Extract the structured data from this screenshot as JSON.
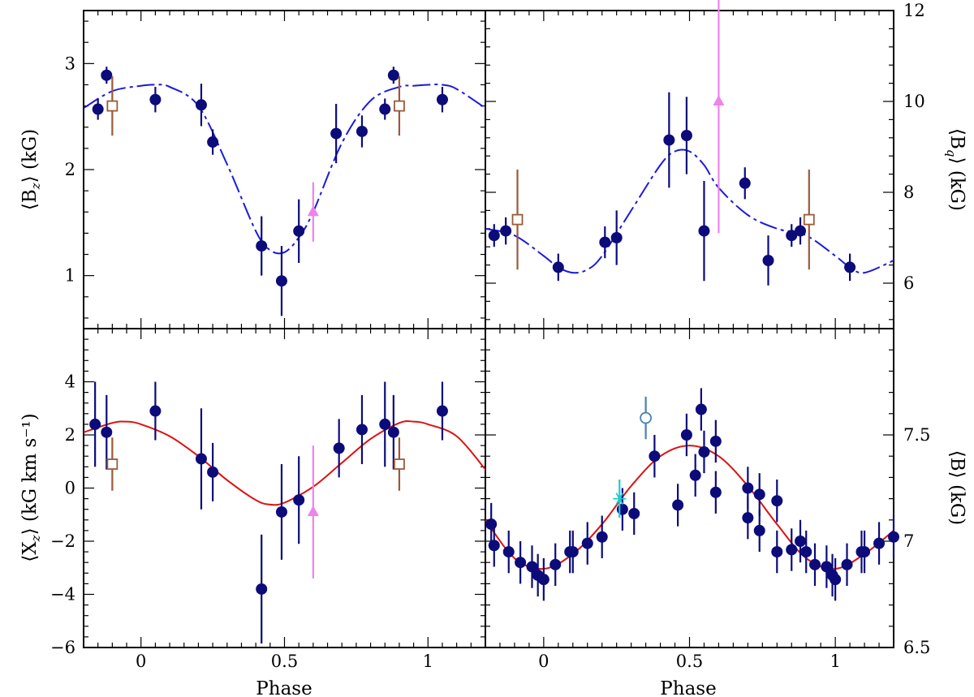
{
  "colors": {
    "main_points": "#0b0b7a",
    "square": "#9a5a3a",
    "triangle": "#ee82ee",
    "circle_open": "#4682b4",
    "star": "#20c8d0",
    "fit_dashed": "#1a1add",
    "fit_solid": "#dd1111"
  },
  "chart_data": [
    {
      "id": "top-left",
      "type": "scatter",
      "xlabel": "",
      "ylabel": "⟨Bz⟩ (kG)",
      "ylabel_main": "⟨B",
      "ylabel_sub": "z",
      "ylabel_tail": "⟩ (kG)",
      "xlim": [
        -0.2,
        1.2
      ],
      "ylim": [
        0.5,
        3.5
      ],
      "yticks": [
        1,
        2,
        3
      ],
      "yticklabels": [
        "1",
        "2",
        "3"
      ],
      "xticklabels_shown": false,
      "fit": {
        "style": "dashed",
        "x": [
          -0.2,
          -0.1,
          0,
          0.05,
          0.1,
          0.2,
          0.3,
          0.4,
          0.45,
          0.5,
          0.55,
          0.6,
          0.7,
          0.8,
          0.9,
          0.95,
          1,
          1.05,
          1.1,
          1.2
        ],
        "y": [
          2.58,
          2.74,
          2.79,
          2.8,
          2.78,
          2.6,
          2.05,
          1.42,
          1.24,
          1.22,
          1.36,
          1.6,
          2.25,
          2.65,
          2.78,
          2.79,
          2.8,
          2.8,
          2.76,
          2.58
        ]
      },
      "series": [
        {
          "name": "main",
          "marker": "filled-circle",
          "points": [
            {
              "x": -0.15,
              "y": 2.57,
              "err": 0.1
            },
            {
              "x": -0.12,
              "y": 2.89,
              "err": 0.08
            },
            {
              "x": 0.05,
              "y": 2.66,
              "err": 0.12
            },
            {
              "x": 0.21,
              "y": 2.61,
              "err": 0.2
            },
            {
              "x": 0.25,
              "y": 2.26,
              "err": 0.12
            },
            {
              "x": 0.42,
              "y": 1.28,
              "err": 0.28
            },
            {
              "x": 0.49,
              "y": 0.95,
              "err": 0.33
            },
            {
              "x": 0.55,
              "y": 1.42,
              "err": 0.3
            },
            {
              "x": 0.68,
              "y": 2.34,
              "err": 0.28
            },
            {
              "x": 0.77,
              "y": 2.36,
              "err": 0.15
            },
            {
              "x": 0.85,
              "y": 2.57,
              "err": 0.1
            },
            {
              "x": 0.88,
              "y": 2.89,
              "err": 0.08
            },
            {
              "x": 1.05,
              "y": 2.66,
              "err": 0.12
            }
          ]
        },
        {
          "name": "square",
          "marker": "open-square",
          "points": [
            {
              "x": -0.1,
              "y": 2.6,
              "err": 0.28
            },
            {
              "x": 0.9,
              "y": 2.6,
              "err": 0.28
            }
          ]
        },
        {
          "name": "triangle",
          "marker": "filled-triangle",
          "points": [
            {
              "x": 0.6,
              "y": 1.6,
              "err": 0.28
            }
          ]
        }
      ]
    },
    {
      "id": "top-right",
      "type": "scatter",
      "xlabel": "",
      "ylabel": "⟨Bq⟩ (kG)",
      "ylabel_main": "⟨B",
      "ylabel_sub": "q",
      "ylabel_tail": "⟩ (kG)",
      "xlim": [
        -0.2,
        1.2
      ],
      "ylim": [
        5,
        12
      ],
      "yticks": [
        6,
        8,
        10,
        12
      ],
      "yticklabels": [
        "6",
        "8",
        "10",
        "12"
      ],
      "xticklabels_shown": false,
      "fit": {
        "style": "dashed",
        "x": [
          -0.2,
          -0.1,
          0,
          0.05,
          0.1,
          0.15,
          0.2,
          0.3,
          0.4,
          0.45,
          0.5,
          0.55,
          0.6,
          0.7,
          0.8,
          0.9,
          1,
          1.05,
          1.1,
          1.2
        ],
        "y": [
          7.2,
          7.05,
          6.6,
          6.35,
          6.23,
          6.3,
          6.6,
          7.6,
          8.6,
          8.9,
          8.9,
          8.6,
          8.1,
          7.5,
          7.2,
          7.05,
          6.6,
          6.35,
          6.23,
          6.5
        ]
      },
      "series": [
        {
          "name": "main",
          "marker": "filled-circle",
          "points": [
            {
              "x": -0.17,
              "y": 7.05,
              "err": 0.25
            },
            {
              "x": -0.13,
              "y": 7.15,
              "err": 0.3
            },
            {
              "x": 0.05,
              "y": 6.35,
              "err": 0.3
            },
            {
              "x": 0.21,
              "y": 6.9,
              "err": 0.35
            },
            {
              "x": 0.25,
              "y": 7.0,
              "err": 0.6
            },
            {
              "x": 0.43,
              "y": 9.15,
              "err": 1.05
            },
            {
              "x": 0.49,
              "y": 9.25,
              "err": 0.85
            },
            {
              "x": 0.55,
              "y": 7.15,
              "err": 1.1
            },
            {
              "x": 0.69,
              "y": 8.2,
              "err": 0.35
            },
            {
              "x": 0.77,
              "y": 6.5,
              "err": 0.55
            },
            {
              "x": 0.85,
              "y": 7.05,
              "err": 0.25
            },
            {
              "x": 0.88,
              "y": 7.15,
              "err": 0.3
            },
            {
              "x": 1.05,
              "y": 6.35,
              "err": 0.3
            }
          ]
        },
        {
          "name": "square",
          "marker": "open-square",
          "points": [
            {
              "x": -0.09,
              "y": 7.4,
              "err": 1.1
            },
            {
              "x": 0.91,
              "y": 7.4,
              "err": 1.1
            }
          ]
        },
        {
          "name": "triangle",
          "marker": "filled-triangle",
          "points": [
            {
              "x": 0.6,
              "y": 10.0,
              "err": 2.9
            }
          ]
        }
      ]
    },
    {
      "id": "bottom-left",
      "type": "scatter",
      "xlabel": "Phase",
      "ylabel": "⟨Xz⟩ (kG km s⁻¹)",
      "ylabel_main": "⟨X",
      "ylabel_sub": "z",
      "ylabel_tail": "⟩ (kG km s⁻¹)",
      "xlim": [
        -0.2,
        1.2
      ],
      "ylim": [
        -6,
        6
      ],
      "yticks": [
        -6,
        -4,
        -2,
        0,
        2,
        4
      ],
      "yticklabels": [
        "−6",
        "−4",
        "−2",
        "0",
        "2",
        "4"
      ],
      "xticks": [
        0,
        0.5,
        1
      ],
      "xticklabels": [
        "0",
        "0.5",
        "1"
      ],
      "fit": {
        "style": "solid",
        "x": [
          -0.2,
          -0.1,
          -0.05,
          0,
          0.1,
          0.2,
          0.3,
          0.4,
          0.45,
          0.5,
          0.6,
          0.7,
          0.8,
          0.9,
          0.95,
          1,
          1.1,
          1.2
        ],
        "y": [
          2.1,
          2.45,
          2.5,
          2.4,
          1.95,
          1.2,
          0.3,
          -0.45,
          -0.62,
          -0.55,
          0.05,
          0.95,
          1.85,
          2.45,
          2.5,
          2.4,
          1.95,
          0.7
        ]
      },
      "series": [
        {
          "name": "main",
          "marker": "filled-circle",
          "points": [
            {
              "x": -0.16,
              "y": 2.4,
              "err": 1.6
            },
            {
              "x": -0.12,
              "y": 2.1,
              "err": 1.4
            },
            {
              "x": 0.05,
              "y": 2.9,
              "err": 1.1
            },
            {
              "x": 0.21,
              "y": 1.1,
              "err": 1.9
            },
            {
              "x": 0.25,
              "y": 0.6,
              "err": 1.1
            },
            {
              "x": 0.42,
              "y": -3.8,
              "err": 2.05
            },
            {
              "x": 0.49,
              "y": -0.9,
              "err": 1.8
            },
            {
              "x": 0.55,
              "y": -0.45,
              "err": 1.65
            },
            {
              "x": 0.69,
              "y": 1.5,
              "err": 1.1
            },
            {
              "x": 0.77,
              "y": 2.2,
              "err": 1.3
            },
            {
              "x": 0.85,
              "y": 2.4,
              "err": 1.6
            },
            {
              "x": 0.88,
              "y": 2.1,
              "err": 1.4
            },
            {
              "x": 1.05,
              "y": 2.9,
              "err": 1.1
            }
          ]
        },
        {
          "name": "square",
          "marker": "open-square",
          "points": [
            {
              "x": -0.1,
              "y": 0.9,
              "err": 1.0
            },
            {
              "x": 0.9,
              "y": 0.9,
              "err": 1.0
            }
          ]
        },
        {
          "name": "triangle",
          "marker": "filled-triangle",
          "points": [
            {
              "x": 0.6,
              "y": -0.9,
              "err": 2.5
            }
          ]
        }
      ]
    },
    {
      "id": "bottom-right",
      "type": "scatter",
      "xlabel": "Phase",
      "ylabel": "⟨B⟩ (kG)",
      "ylabel_main": "⟨B⟩ (kG)",
      "ylabel_sub": "",
      "ylabel_tail": "",
      "xlim": [
        -0.2,
        1.2
      ],
      "ylim": [
        6.5,
        8
      ],
      "yticks": [
        6.5,
        7,
        7.5
      ],
      "yticklabels": [
        "6.5",
        "7",
        "7.5"
      ],
      "xticks": [
        0,
        0.5,
        1
      ],
      "xticklabels": [
        "0",
        "0.5",
        "1"
      ],
      "fit": {
        "style": "solid",
        "x": [
          -0.2,
          -0.1,
          0,
          0.1,
          0.2,
          0.3,
          0.4,
          0.5,
          0.6,
          0.7,
          0.8,
          0.9,
          1,
          1.1,
          1.2
        ],
        "y": [
          7.1,
          6.92,
          6.87,
          6.94,
          7.08,
          7.26,
          7.4,
          7.45,
          7.4,
          7.26,
          7.08,
          6.92,
          6.87,
          6.94,
          7.05
        ]
      },
      "series": [
        {
          "name": "main",
          "marker": "filled-circle",
          "points": [
            {
              "x": -0.18,
              "y": 7.08,
              "err": 0.1
            },
            {
              "x": -0.17,
              "y": 6.98,
              "err": 0.1
            },
            {
              "x": -0.12,
              "y": 6.95,
              "err": 0.1
            },
            {
              "x": -0.08,
              "y": 6.9,
              "err": 0.1
            },
            {
              "x": -0.04,
              "y": 6.88,
              "err": 0.1
            },
            {
              "x": -0.02,
              "y": 6.84,
              "err": 0.1
            },
            {
              "x": 0.0,
              "y": 6.82,
              "err": 0.1
            },
            {
              "x": 0.04,
              "y": 6.89,
              "err": 0.1
            },
            {
              "x": 0.09,
              "y": 6.95,
              "err": 0.1
            },
            {
              "x": 0.1,
              "y": 6.95,
              "err": 0.1
            },
            {
              "x": 0.15,
              "y": 6.99,
              "err": 0.1
            },
            {
              "x": 0.2,
              "y": 7.02,
              "err": 0.1
            },
            {
              "x": 0.27,
              "y": 7.15,
              "err": 0.1
            },
            {
              "x": 0.31,
              "y": 7.13,
              "err": 0.1
            },
            {
              "x": 0.38,
              "y": 7.4,
              "err": 0.1
            },
            {
              "x": 0.46,
              "y": 7.17,
              "err": 0.1
            },
            {
              "x": 0.49,
              "y": 7.5,
              "err": 0.1
            },
            {
              "x": 0.52,
              "y": 7.31,
              "err": 0.1
            },
            {
              "x": 0.54,
              "y": 7.62,
              "err": 0.1
            },
            {
              "x": 0.55,
              "y": 7.42,
              "err": 0.1
            },
            {
              "x": 0.59,
              "y": 7.47,
              "err": 0.1
            },
            {
              "x": 0.59,
              "y": 7.23,
              "err": 0.1
            },
            {
              "x": 0.7,
              "y": 7.25,
              "err": 0.1
            },
            {
              "x": 0.7,
              "y": 7.11,
              "err": 0.1
            },
            {
              "x": 0.74,
              "y": 7.22,
              "err": 0.1
            },
            {
              "x": 0.74,
              "y": 7.05,
              "err": 0.1
            },
            {
              "x": 0.8,
              "y": 7.19,
              "err": 0.1
            },
            {
              "x": 0.8,
              "y": 6.95,
              "err": 0.1
            },
            {
              "x": 0.85,
              "y": 6.96,
              "err": 0.1
            },
            {
              "x": 0.88,
              "y": 7.0,
              "err": 0.1
            },
            {
              "x": 0.9,
              "y": 6.95,
              "err": 0.1
            },
            {
              "x": 0.93,
              "y": 6.89,
              "err": 0.1
            },
            {
              "x": 0.97,
              "y": 6.88,
              "err": 0.1
            },
            {
              "x": 0.99,
              "y": 6.84,
              "err": 0.1
            },
            {
              "x": 1.0,
              "y": 6.82,
              "err": 0.1
            },
            {
              "x": 1.04,
              "y": 6.89,
              "err": 0.1
            },
            {
              "x": 1.09,
              "y": 6.95,
              "err": 0.1
            },
            {
              "x": 1.1,
              "y": 6.95,
              "err": 0.1
            },
            {
              "x": 1.15,
              "y": 6.99,
              "err": 0.1
            },
            {
              "x": 1.2,
              "y": 7.02,
              "err": 0.1
            }
          ]
        },
        {
          "name": "circle",
          "marker": "open-circle",
          "points": [
            {
              "x": 0.35,
              "y": 7.58,
              "err": 0.1
            }
          ]
        },
        {
          "name": "star",
          "marker": "asterisk",
          "points": [
            {
              "x": 0.26,
              "y": 7.2,
              "err": 0.09
            }
          ]
        }
      ]
    }
  ]
}
